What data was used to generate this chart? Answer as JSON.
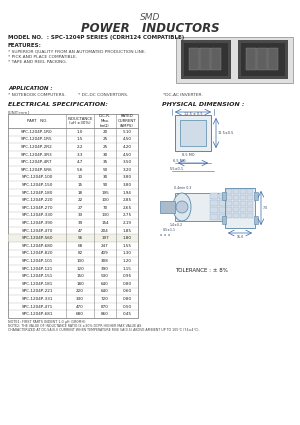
{
  "title_line1": "SMD",
  "title_line2": "POWER   INDUCTORS",
  "model_no": "MODEL NO.  : SPC-1204P SERIES (CDRH124 COMPATIBLE)",
  "features_title": "FEATURES:",
  "features": [
    "* SUPERIOR QUALITY FROM AN AUTOMATED PRODUCTION LINE.",
    "* PICK AND PLACE COMPATIBLE.",
    "* TAPE AND REEL PACKING."
  ],
  "application_title": "APPLICATION :",
  "application_items": [
    "* NOTEBOOK COMPUTERS.",
    "* DC-DC CONVERTORS.",
    "*DC-AC INVERTER."
  ],
  "elec_spec_title": "ELECTRICAL SPECIFICATION:",
  "phys_dim_title": "PHYSICAL DIMENSION :",
  "unit_note": "[UNIT:mm]",
  "table_headers": [
    "PART   NO.",
    "INDUCTANCE\n(uH  ±30%)",
    "D.C.R.\nMax.\n(mΩ)",
    "RATED\nCURRENT\n(AMPS)"
  ],
  "table_data": [
    [
      "SPC-1204P-1R0",
      "1.0",
      "20",
      "5.10"
    ],
    [
      "SPC-1204P-1R5",
      "1.5",
      "25",
      "4.50"
    ],
    [
      "SPC-1204P-2R2",
      "2.2",
      "25",
      "4.20"
    ],
    [
      "SPC-1204P-3R3",
      "3.3",
      "30",
      "4.50"
    ],
    [
      "SPC-1204P-4R7",
      "4.7",
      "35",
      "3.50"
    ],
    [
      "SPC-1204P-5R6",
      "5.6",
      "50",
      "3.20"
    ],
    [
      "SPC-1204P-100",
      "10",
      "30",
      "3.80"
    ],
    [
      "SPC-1204P-150",
      "15",
      "90",
      "3.80"
    ],
    [
      "SPC-1204P-180",
      "18",
      "195",
      "1.94"
    ],
    [
      "SPC-1204P-220",
      "22",
      "100",
      "2.85"
    ],
    [
      "SPC-1204P-270",
      "27",
      "70",
      "2.65"
    ],
    [
      "SPC-1204P-330",
      "33",
      "130",
      "2.75"
    ],
    [
      "SPC-1204P-390",
      "39",
      "154",
      "2.19"
    ],
    [
      "SPC-1204P-470",
      "47",
      "204",
      "1.85"
    ],
    [
      "SPC-1204P-560",
      "56",
      "197",
      "1.80"
    ],
    [
      "SPC-1204P-680",
      "68",
      "247",
      "1.55"
    ],
    [
      "SPC-1204P-820",
      "82",
      "409",
      "1.30"
    ],
    [
      "SPC-1204P-101",
      "100",
      "308",
      "1.20"
    ],
    [
      "SPC-1204P-121",
      "120",
      "390",
      "1.15"
    ],
    [
      "SPC-1204P-151",
      "150",
      "530",
      "0.95"
    ],
    [
      "SPC-1204P-181",
      "180",
      "640",
      "0.80"
    ],
    [
      "SPC-1204P-221",
      "220",
      "640",
      "0.60"
    ],
    [
      "SPC-1204P-331",
      "330",
      "720",
      "0.80"
    ],
    [
      "SPC-1204P-471",
      "470",
      "870",
      "0.50"
    ],
    [
      "SPC-1204P-681",
      "680",
      "860",
      "0.45"
    ]
  ],
  "note1": "NOTE1: FIRST PARTS INDENT 1.0 μH (1R0MH)",
  "note2": "NOTE2: THE VALUE OF INDUCTANCE RATIO IS ±30% DCPR HIGHER MAX VALUE AS CHARACTERIZED AT DC-5A(S.I) CURRENT WHEN TEMPERATURE RISE 5A(0.5) ABOVE AMBIENT UP TO 105°C (74±4°C).",
  "tolerance": "TOLERANCE : ± 8%",
  "bg_color": "#ffffff",
  "text_color": "#333333",
  "table_line_color": "#888888",
  "highlight_row": 14
}
